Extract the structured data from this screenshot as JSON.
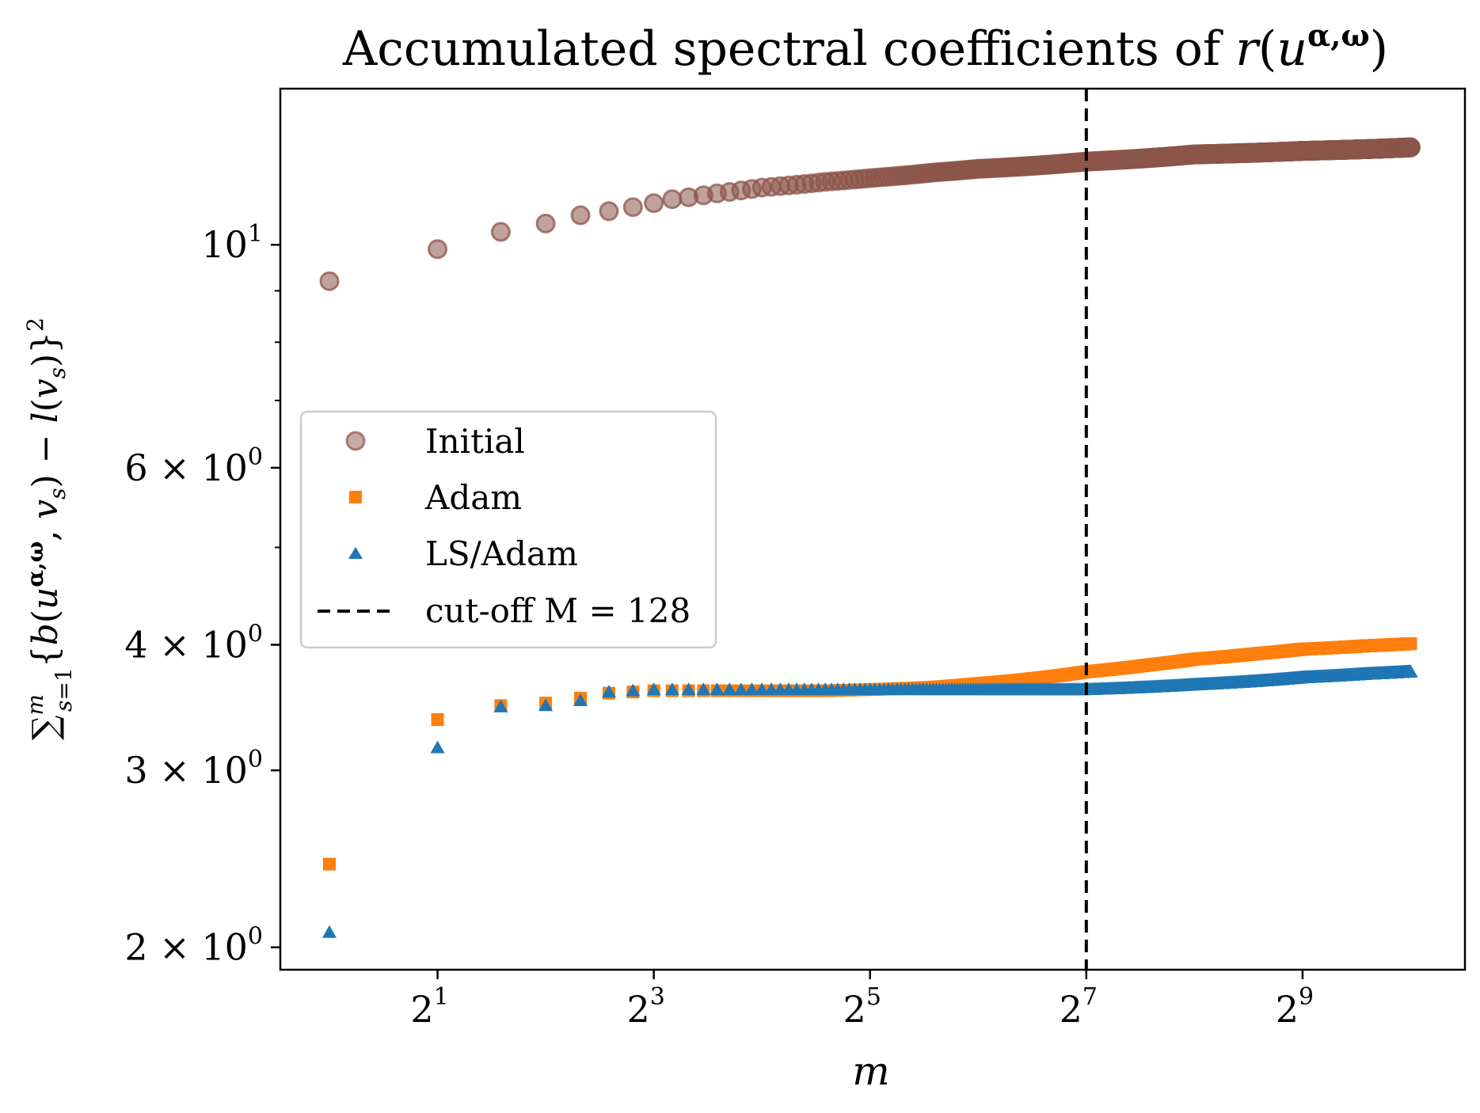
{
  "chart_data": {
    "type": "scatter",
    "title": "Accumulated spectral coefficients of r(u^{α,ω})",
    "xlabel": "m",
    "ylabel": "∑_{s=1}^{m} {b(u^{α,ω}, v_s) − l(v_s)}²",
    "x_scale": "log2",
    "y_scale": "log10",
    "xlim": [
      0.73,
      1450
    ],
    "ylim": [
      1.9,
      14.3
    ],
    "x_ticks": [
      {
        "value": 2,
        "base": "2",
        "exp": "1"
      },
      {
        "value": 8,
        "base": "2",
        "exp": "3"
      },
      {
        "value": 32,
        "base": "2",
        "exp": "5"
      },
      {
        "value": 128,
        "base": "2",
        "exp": "7"
      },
      {
        "value": 512,
        "base": "2",
        "exp": "9"
      }
    ],
    "y_ticks": [
      {
        "value": 10,
        "pre": "",
        "base": "10",
        "exp": "1"
      },
      {
        "value": 6,
        "pre": "6 × ",
        "base": "10",
        "exp": "0"
      },
      {
        "value": 4,
        "pre": "4 × ",
        "base": "10",
        "exp": "0"
      },
      {
        "value": 3,
        "pre": "3 × ",
        "base": "10",
        "exp": "0"
      },
      {
        "value": 2,
        "pre": "2 × ",
        "base": "10",
        "exp": "0"
      }
    ],
    "y_minor_ticks": [
      7,
      8,
      9,
      5
    ],
    "cutoff": {
      "x": 128,
      "label": "cut-off M = 128"
    },
    "series": [
      {
        "name": "Initial",
        "marker": "circle",
        "color": "#8c564b",
        "x": [
          1,
          2,
          3,
          4,
          5,
          6,
          7,
          8,
          9,
          10,
          12,
          16,
          24,
          32,
          48,
          64,
          96,
          128,
          192,
          256,
          384,
          512,
          768,
          1024
        ],
        "values": [
          9.2,
          9.9,
          10.3,
          10.5,
          10.7,
          10.8,
          10.9,
          11.0,
          11.1,
          11.15,
          11.25,
          11.4,
          11.55,
          11.65,
          11.8,
          11.9,
          12.0,
          12.1,
          12.2,
          12.3,
          12.35,
          12.4,
          12.45,
          12.5
        ]
      },
      {
        "name": "Adam",
        "marker": "square",
        "color": "#ff7f0e",
        "x": [
          1,
          2,
          3,
          4,
          5,
          6,
          7,
          8,
          9,
          10,
          12,
          16,
          24,
          32,
          48,
          64,
          96,
          128,
          192,
          256,
          384,
          512,
          768,
          1024
        ],
        "values": [
          2.42,
          3.37,
          3.48,
          3.5,
          3.54,
          3.58,
          3.59,
          3.6,
          3.6,
          3.6,
          3.6,
          3.6,
          3.6,
          3.61,
          3.63,
          3.66,
          3.71,
          3.76,
          3.82,
          3.87,
          3.92,
          3.96,
          3.99,
          4.01
        ]
      },
      {
        "name": "LS/Adam",
        "marker": "triangle",
        "color": "#1f77b4",
        "x": [
          1,
          2,
          3,
          4,
          5,
          6,
          7,
          8,
          9,
          10,
          12,
          16,
          24,
          32,
          48,
          64,
          96,
          128,
          192,
          256,
          384,
          512,
          768,
          1024
        ],
        "values": [
          2.07,
          3.16,
          3.47,
          3.48,
          3.52,
          3.59,
          3.6,
          3.61,
          3.61,
          3.61,
          3.61,
          3.61,
          3.61,
          3.61,
          3.61,
          3.61,
          3.61,
          3.61,
          3.63,
          3.65,
          3.68,
          3.71,
          3.74,
          3.76
        ]
      }
    ],
    "legend": {
      "position": "center-left",
      "entries": [
        "Initial",
        "Adam",
        "LS/Adam",
        "cut-off M = 128"
      ]
    }
  }
}
